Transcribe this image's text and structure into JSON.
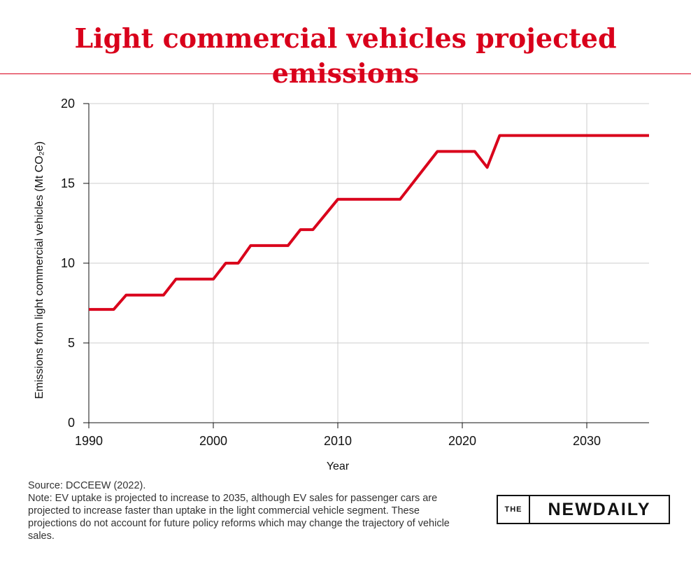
{
  "title": "Light commercial vehicles projected emissions",
  "source": "Source: DCCEEW (2022).",
  "note": "Note: EV uptake is projected to increase to 2035, although EV sales for passenger cars are projected to increase faster than uptake in the light commercial vehicle segment. These projections do not account for future policy reforms which may change the trajectory of vehicle sales.",
  "logo": {
    "the": "THE",
    "brand": "NEWDAILY"
  },
  "colors": {
    "accent": "#d9001b",
    "line": "#d9001b",
    "grid": "#cccccc"
  },
  "chart_data": {
    "type": "line",
    "xlabel": "Year",
    "ylabel": "Emissions from light commercial vehicles (Mt CO₂e)",
    "xlim": [
      1990,
      2035
    ],
    "ylim": [
      0,
      20
    ],
    "xticks": [
      1990,
      2000,
      2010,
      2020,
      2030
    ],
    "yticks": [
      0,
      5,
      10,
      15,
      20
    ],
    "grid": true,
    "series": [
      {
        "x": [
          1990,
          1992,
          1993,
          1996,
          1997,
          2000,
          2001,
          2002,
          2003,
          2006,
          2007,
          2008,
          2010,
          2015,
          2018,
          2021,
          2022,
          2023,
          2035
        ],
        "y": [
          7.1,
          7.1,
          8.0,
          8.0,
          9.0,
          9.0,
          10.0,
          10.0,
          11.1,
          11.1,
          12.1,
          12.1,
          14.0,
          14.0,
          17.0,
          17.0,
          16.0,
          18.0,
          18.0
        ]
      }
    ]
  }
}
